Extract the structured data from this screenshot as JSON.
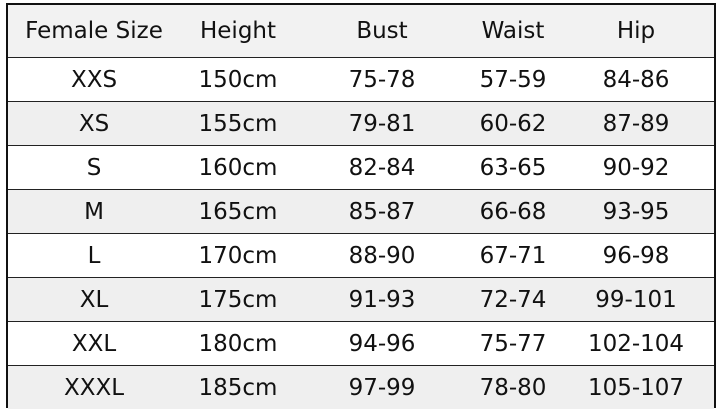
{
  "headers": [
    "Female Size",
    "Height",
    "Bust",
    "Waist",
    "Hip"
  ],
  "rows": [
    [
      "XXS",
      "150cm",
      "75-78",
      "57-59",
      "84-86"
    ],
    [
      "XS",
      "155cm",
      "79-81",
      "60-62",
      "87-89"
    ],
    [
      "S",
      "160cm",
      "82-84",
      "63-65",
      "90-92"
    ],
    [
      "M",
      "165cm",
      "85-87",
      "66-68",
      "93-95"
    ],
    [
      "L",
      "170cm",
      "88-90",
      "67-71",
      "96-98"
    ],
    [
      "XL",
      "175cm",
      "91-93",
      "72-74",
      "99-101"
    ],
    [
      "XXL",
      "180cm",
      "94-96",
      "75-77",
      "102-104"
    ],
    [
      "XXXL",
      "185cm",
      "97-99",
      "78-80",
      "105-107"
    ]
  ]
}
